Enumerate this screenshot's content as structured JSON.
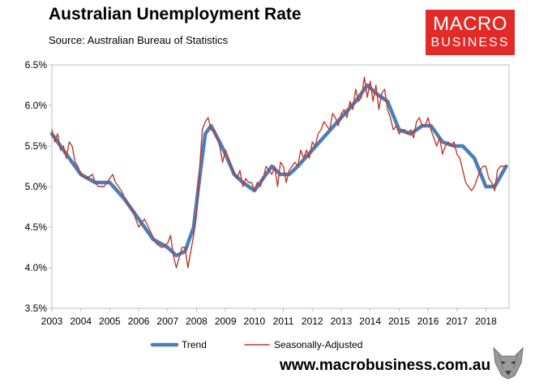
{
  "header": {
    "title": "Australian Unemployment Rate",
    "subtitle": "Source: Australian Bureau of Statistics"
  },
  "logo": {
    "line1": "MACRO",
    "line2": "BUSINESS",
    "color": "#e22a26"
  },
  "footer": {
    "url": "www.macrobusiness.com.au",
    "icon": "wolf-logo-icon"
  },
  "chart_data": {
    "type": "line",
    "title": "Australian Unemployment Rate",
    "xlabel": "",
    "ylabel": "",
    "xlim": [
      2003,
      2018.8
    ],
    "ylim": [
      3.5,
      6.5
    ],
    "x_ticks": [
      2003,
      2004,
      2005,
      2006,
      2007,
      2008,
      2009,
      2010,
      2011,
      2012,
      2013,
      2014,
      2015,
      2016,
      2017,
      2018
    ],
    "y_ticks": [
      3.5,
      4.0,
      4.5,
      5.0,
      5.5,
      6.0,
      6.5
    ],
    "y_tick_labels": [
      "3.5%",
      "4.0%",
      "4.5%",
      "5.0%",
      "5.5%",
      "6.0%",
      "6.5%"
    ],
    "grid": false,
    "legend": "bottom",
    "series": [
      {
        "name": "Trend",
        "color": "#4a7ebb",
        "x": [
          2003.0,
          2003.5,
          2004.0,
          2004.5,
          2005.0,
          2005.5,
          2006.0,
          2006.5,
          2007.0,
          2007.3,
          2007.6,
          2007.9,
          2008.1,
          2008.3,
          2008.5,
          2008.8,
          2009.0,
          2009.3,
          2009.6,
          2010.0,
          2010.3,
          2010.6,
          2010.9,
          2011.2,
          2011.5,
          2012.0,
          2012.5,
          2013.0,
          2013.5,
          2013.9,
          2014.2,
          2014.6,
          2015.0,
          2015.4,
          2015.8,
          2016.1,
          2016.5,
          2016.9,
          2017.2,
          2017.6,
          2018.0,
          2018.3,
          2018.7
        ],
        "values": [
          5.65,
          5.4,
          5.15,
          5.05,
          5.05,
          4.85,
          4.6,
          4.35,
          4.25,
          4.15,
          4.2,
          4.5,
          5.1,
          5.65,
          5.75,
          5.55,
          5.4,
          5.15,
          5.05,
          4.95,
          5.1,
          5.25,
          5.15,
          5.15,
          5.25,
          5.45,
          5.65,
          5.85,
          6.05,
          6.25,
          6.15,
          6.05,
          5.7,
          5.65,
          5.75,
          5.75,
          5.55,
          5.5,
          5.5,
          5.35,
          5.0,
          5.0,
          5.25
        ]
      },
      {
        "name": "Seasonally-Adjusted",
        "color": "#c0392b",
        "x": [
          2003.0,
          2003.1,
          2003.2,
          2003.3,
          2003.4,
          2003.5,
          2003.6,
          2003.7,
          2003.8,
          2003.9,
          2004.0,
          2004.2,
          2004.4,
          2004.5,
          2004.6,
          2004.8,
          2005.0,
          2005.1,
          2005.2,
          2005.4,
          2005.6,
          2005.8,
          2006.0,
          2006.2,
          2006.4,
          2006.6,
          2006.8,
          2007.0,
          2007.1,
          2007.2,
          2007.3,
          2007.5,
          2007.6,
          2007.7,
          2007.9,
          2008.0,
          2008.1,
          2008.2,
          2008.3,
          2008.4,
          2008.5,
          2008.6,
          2008.7,
          2008.8,
          2008.9,
          2009.0,
          2009.1,
          2009.2,
          2009.3,
          2009.4,
          2009.5,
          2009.6,
          2009.7,
          2009.8,
          2009.9,
          2010.0,
          2010.1,
          2010.2,
          2010.3,
          2010.4,
          2010.5,
          2010.6,
          2010.7,
          2010.8,
          2010.9,
          2011.0,
          2011.1,
          2011.2,
          2011.3,
          2011.4,
          2011.5,
          2011.6,
          2011.7,
          2011.8,
          2011.9,
          2012.0,
          2012.1,
          2012.2,
          2012.3,
          2012.4,
          2012.5,
          2012.6,
          2012.7,
          2012.8,
          2012.9,
          2013.0,
          2013.1,
          2013.2,
          2013.3,
          2013.4,
          2013.5,
          2013.6,
          2013.7,
          2013.8,
          2013.9,
          2014.0,
          2014.1,
          2014.2,
          2014.3,
          2014.4,
          2014.5,
          2014.6,
          2014.7,
          2014.8,
          2014.9,
          2015.0,
          2015.1,
          2015.2,
          2015.3,
          2015.4,
          2015.5,
          2015.6,
          2015.7,
          2015.8,
          2015.9,
          2016.0,
          2016.1,
          2016.2,
          2016.3,
          2016.4,
          2016.5,
          2016.6,
          2016.7,
          2016.8,
          2016.9,
          2017.0,
          2017.1,
          2017.2,
          2017.3,
          2017.4,
          2017.5,
          2017.6,
          2017.7,
          2017.8,
          2017.9,
          2018.0,
          2018.1,
          2018.2,
          2018.3,
          2018.4,
          2018.5,
          2018.6,
          2018.7
        ],
        "values": [
          5.7,
          5.55,
          5.65,
          5.45,
          5.5,
          5.35,
          5.55,
          5.5,
          5.3,
          5.25,
          5.15,
          5.1,
          5.15,
          5.05,
          5.0,
          5.0,
          5.1,
          5.15,
          5.05,
          4.95,
          4.8,
          4.7,
          4.5,
          4.6,
          4.45,
          4.3,
          4.25,
          4.3,
          4.4,
          4.15,
          4.0,
          4.25,
          4.25,
          4.0,
          4.4,
          4.65,
          5.2,
          5.7,
          5.8,
          5.85,
          5.7,
          5.7,
          5.6,
          5.5,
          5.3,
          5.45,
          5.35,
          5.25,
          5.15,
          5.1,
          5.2,
          5.0,
          5.1,
          5.05,
          5.05,
          4.95,
          5.05,
          5.0,
          5.1,
          5.25,
          5.2,
          5.15,
          5.25,
          5.0,
          5.3,
          5.25,
          5.05,
          5.2,
          5.25,
          5.3,
          5.25,
          5.45,
          5.35,
          5.45,
          5.35,
          5.55,
          5.5,
          5.65,
          5.7,
          5.8,
          5.75,
          5.7,
          5.9,
          5.85,
          5.75,
          5.9,
          5.95,
          5.85,
          6.05,
          5.95,
          6.2,
          6.05,
          6.1,
          6.35,
          6.1,
          6.3,
          6.05,
          6.25,
          5.95,
          6.15,
          6.2,
          5.95,
          5.85,
          5.7,
          5.75,
          5.65,
          5.7,
          5.7,
          5.65,
          5.7,
          5.6,
          5.8,
          5.85,
          5.75,
          5.75,
          5.85,
          5.7,
          5.6,
          5.5,
          5.6,
          5.4,
          5.5,
          5.55,
          5.5,
          5.55,
          5.4,
          5.35,
          5.2,
          5.05,
          5.0,
          4.95,
          5.0,
          5.1,
          5.2,
          5.25,
          5.25,
          5.1,
          5.05,
          4.95,
          5.2,
          5.25,
          5.25,
          5.25
        ]
      }
    ]
  }
}
